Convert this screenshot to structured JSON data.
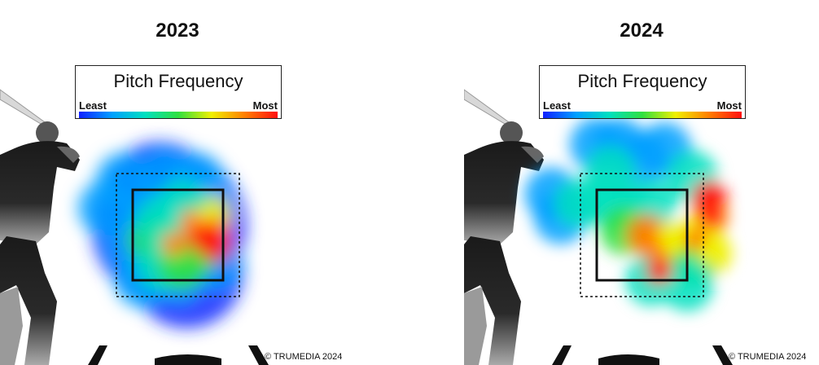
{
  "chart_data": [
    {
      "type": "heatmap",
      "title": "2023",
      "legend": {
        "title": "Pitch Frequency",
        "min_label": "Least",
        "max_label": "Most",
        "colors": [
          "#1020ff",
          "#00a0ff",
          "#00e0c0",
          "#30e040",
          "#f0f000",
          "#ff8000",
          "#ff1010"
        ]
      },
      "credit": "© TRUMEDIA 2024",
      "blobs": [
        {
          "x": 0.25,
          "y": 0.3,
          "level": 0.2
        },
        {
          "x": 0.0,
          "y": 0.6,
          "level": 0.15
        },
        {
          "x": -0.3,
          "y": 0.2,
          "level": 0.15
        },
        {
          "x": 0.6,
          "y": 0.5,
          "level": 0.15
        },
        {
          "x": 0.8,
          "y": 0.1,
          "level": 0.15
        },
        {
          "x": 0.5,
          "y": 0.95,
          "level": 0.2
        },
        {
          "x": 0.1,
          "y": 1.0,
          "level": 0.2
        },
        {
          "x": 0.9,
          "y": 0.8,
          "level": 0.15
        },
        {
          "x": -0.1,
          "y": -0.1,
          "level": 0.12
        },
        {
          "x": 0.35,
          "y": -0.15,
          "level": 0.15
        },
        {
          "x": 0.7,
          "y": -0.1,
          "level": 0.12
        },
        {
          "x": 0.2,
          "y": 0.55,
          "level": 0.5
        },
        {
          "x": 0.45,
          "y": 0.6,
          "level": 0.65
        },
        {
          "x": 0.65,
          "y": 0.35,
          "level": 0.7
        },
        {
          "x": 0.85,
          "y": 0.3,
          "level": 0.6
        },
        {
          "x": 0.7,
          "y": 0.7,
          "level": 0.55
        },
        {
          "x": 0.75,
          "y": 0.55,
          "level": 0.9
        },
        {
          "x": 0.9,
          "y": 0.6,
          "level": 1.0
        },
        {
          "x": 0.85,
          "y": 0.45,
          "level": 0.9
        },
        {
          "x": 0.55,
          "y": 0.15,
          "level": 0.4
        },
        {
          "x": 0.3,
          "y": 0.35,
          "level": 0.35
        },
        {
          "x": 0.3,
          "y": 0.85,
          "level": 0.4
        },
        {
          "x": 0.55,
          "y": 0.85,
          "level": 0.45
        }
      ]
    },
    {
      "type": "heatmap",
      "title": "2024",
      "legend": {
        "title": "Pitch Frequency",
        "min_label": "Least",
        "max_label": "Most",
        "colors": [
          "#1020ff",
          "#00a0ff",
          "#00e0c0",
          "#30e040",
          "#f0f000",
          "#ff8000",
          "#ff1010"
        ]
      },
      "credit": "© TRUMEDIA 2024",
      "blobs": [
        {
          "x": -0.5,
          "y": 0.05,
          "level": 0.2
        },
        {
          "x": -0.4,
          "y": 0.3,
          "level": 0.2
        },
        {
          "x": -0.2,
          "y": 0.15,
          "level": 0.4
        },
        {
          "x": 0.0,
          "y": -0.5,
          "level": 0.2
        },
        {
          "x": 0.25,
          "y": -0.5,
          "level": 0.2
        },
        {
          "x": 0.5,
          "y": -0.35,
          "level": 0.2
        },
        {
          "x": 0.15,
          "y": -0.2,
          "level": 0.3
        },
        {
          "x": 0.75,
          "y": -0.45,
          "level": 0.2
        },
        {
          "x": 1.05,
          "y": -0.15,
          "level": 0.3
        },
        {
          "x": 0.1,
          "y": 0.1,
          "level": 0.25
        },
        {
          "x": 0.35,
          "y": 0.25,
          "level": 0.3
        },
        {
          "x": 0.6,
          "y": 0.15,
          "level": 0.35
        },
        {
          "x": 0.3,
          "y": 0.45,
          "level": 0.45
        },
        {
          "x": 0.55,
          "y": 0.5,
          "level": 0.75
        },
        {
          "x": 0.7,
          "y": 0.7,
          "level": 0.8
        },
        {
          "x": 0.7,
          "y": 0.9,
          "level": 1.0
        },
        {
          "x": 0.85,
          "y": 0.6,
          "level": 0.6
        },
        {
          "x": 1.25,
          "y": 0.1,
          "level": 1.0
        },
        {
          "x": 1.25,
          "y": 0.3,
          "level": 0.9
        },
        {
          "x": 1.1,
          "y": 0.55,
          "level": 0.65
        },
        {
          "x": 1.25,
          "y": 0.7,
          "level": 0.6
        },
        {
          "x": 1.05,
          "y": 0.8,
          "level": 0.5
        },
        {
          "x": 0.6,
          "y": 1.0,
          "level": 0.35
        },
        {
          "x": 1.0,
          "y": 1.05,
          "level": 0.25
        }
      ]
    }
  ]
}
